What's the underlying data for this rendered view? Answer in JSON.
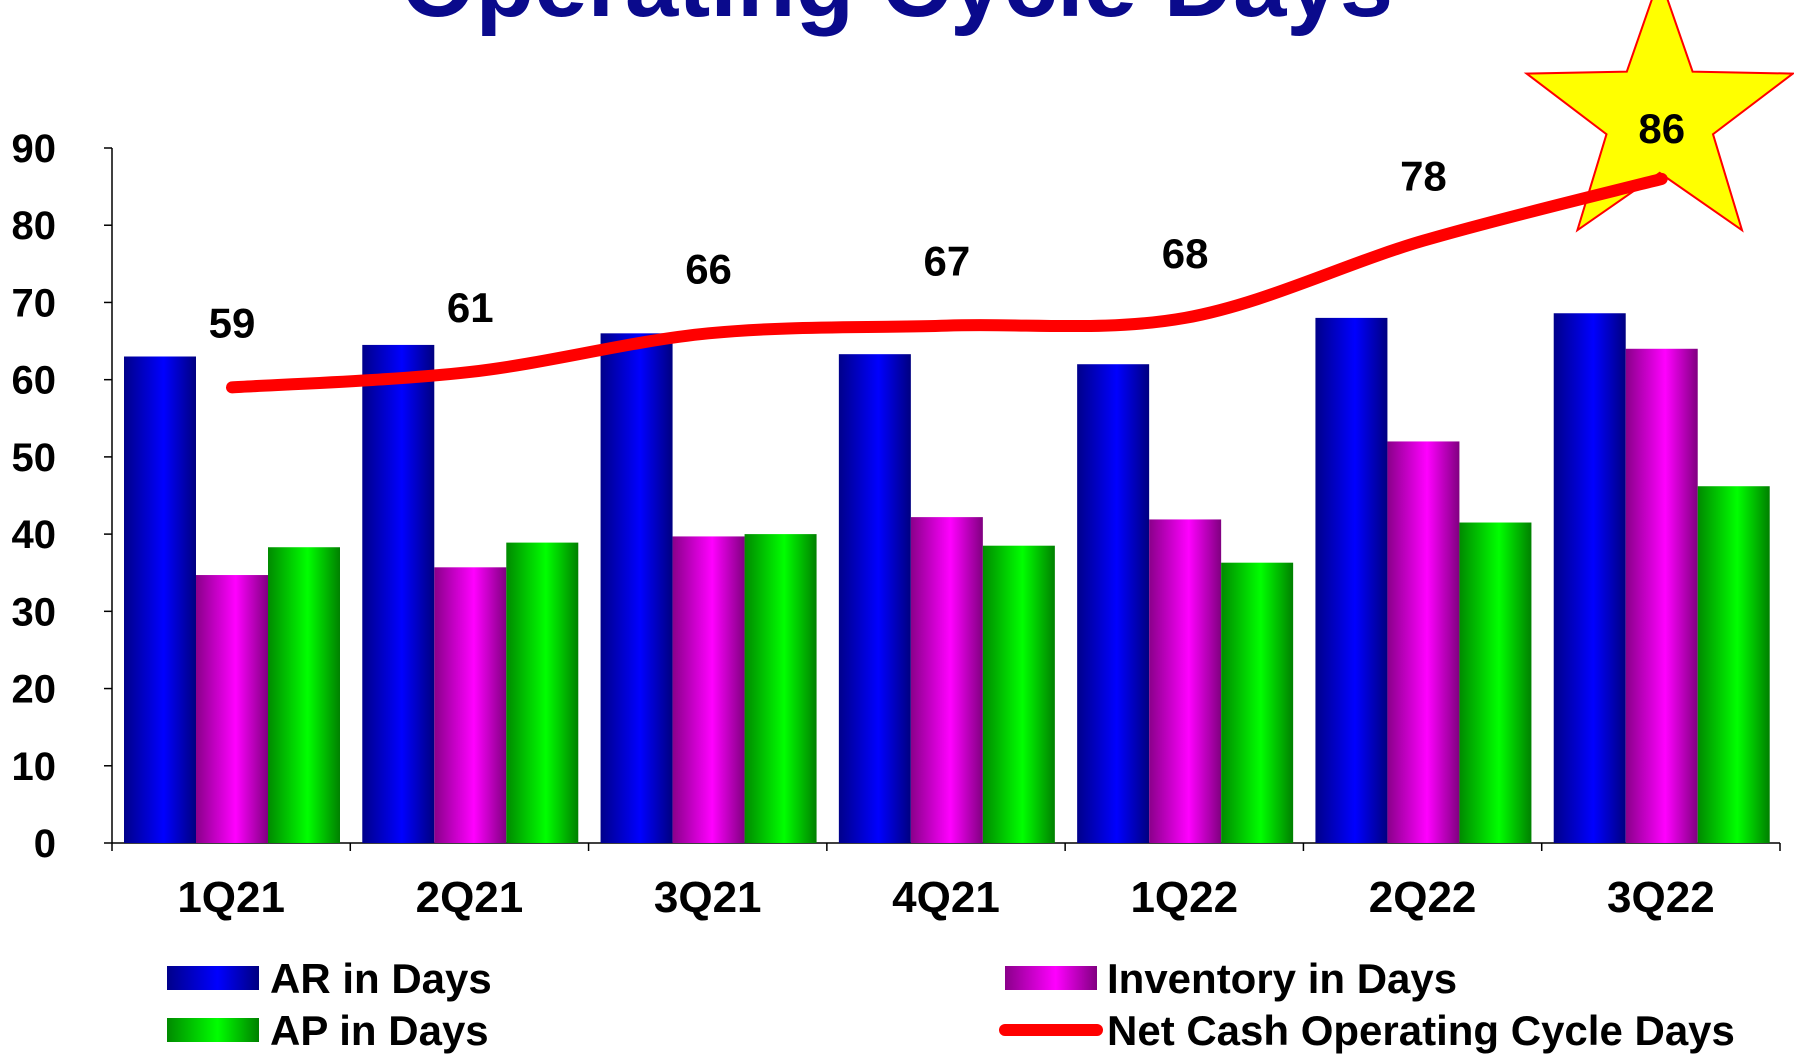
{
  "title": "Operating Cycle Days",
  "colors": {
    "ar": "#0000ff",
    "inventory": "#ff00ff",
    "ap": "#00ff00",
    "net_cycle": "#ff0000",
    "highlight_star_fill": "#ffff00",
    "highlight_star_stroke": "#ff0000",
    "highlight_label": "#ff0000",
    "title": "#0a0a8c"
  },
  "chart_data": {
    "type": "bar",
    "categories": [
      "1Q21",
      "2Q21",
      "3Q21",
      "4Q21",
      "1Q22",
      "2Q22",
      "3Q22"
    ],
    "series": [
      {
        "name": "AR in Days",
        "type": "bar",
        "values": [
          63,
          64.5,
          66,
          63.3,
          62,
          68,
          68.6
        ]
      },
      {
        "name": "Inventory in Days",
        "type": "bar",
        "values": [
          34.7,
          35.7,
          39.7,
          42.2,
          41.9,
          52,
          64
        ]
      },
      {
        "name": "AP in Days",
        "type": "bar",
        "values": [
          38.3,
          38.9,
          40,
          38.5,
          36.3,
          41.5,
          46.2
        ]
      },
      {
        "name": "Net Cash Operating Cycle Days",
        "type": "line",
        "values": [
          59,
          61,
          66,
          67,
          68,
          78,
          86
        ]
      }
    ],
    "line_labels": [
      "59",
      "61",
      "66",
      "67",
      "68",
      "78",
      "86"
    ],
    "y_ticks": [
      "0",
      "10",
      "20",
      "30",
      "40",
      "50",
      "60",
      "70",
      "80",
      "90"
    ],
    "ylim": [
      0,
      90
    ],
    "grid": false,
    "legend_position": "bottom",
    "highlight": {
      "category": "3Q22",
      "shape": "star",
      "label": "86"
    }
  }
}
